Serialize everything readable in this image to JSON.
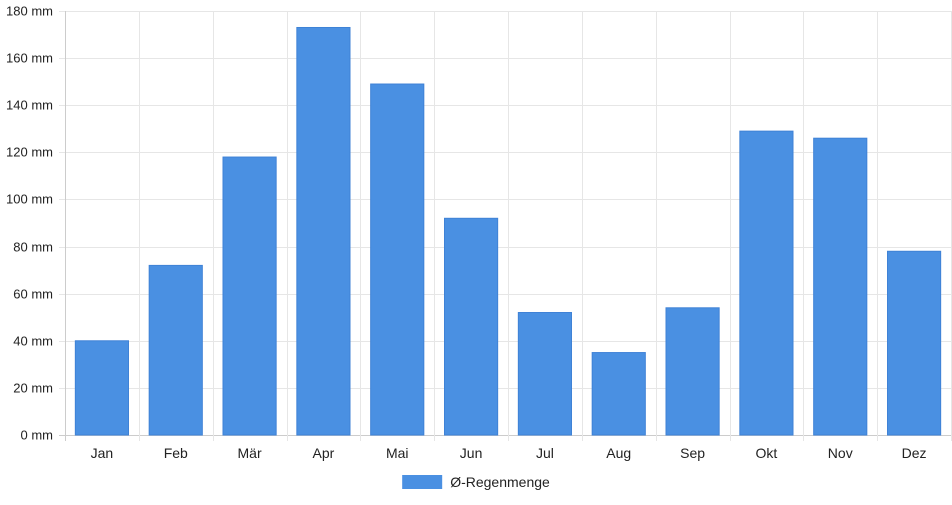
{
  "chart_data": {
    "type": "bar",
    "categories": [
      "Jan",
      "Feb",
      "Mär",
      "Apr",
      "Mai",
      "Jun",
      "Jul",
      "Aug",
      "Sep",
      "Okt",
      "Nov",
      "Dez"
    ],
    "series": [
      {
        "name": "Ø-Regenmenge",
        "values": [
          40,
          72,
          118,
          173,
          149,
          92,
          52,
          35,
          54,
          129,
          126,
          78
        ],
        "color": "#4a90e2"
      }
    ],
    "yticks": [
      "0 mm",
      "20 mm",
      "40 mm",
      "60 mm",
      "80 mm",
      "100 mm",
      "120 mm",
      "140 mm",
      "160 mm",
      "180 mm"
    ],
    "ylim": [
      0,
      180
    ],
    "grid": true,
    "legend_position": "bottom-center"
  }
}
